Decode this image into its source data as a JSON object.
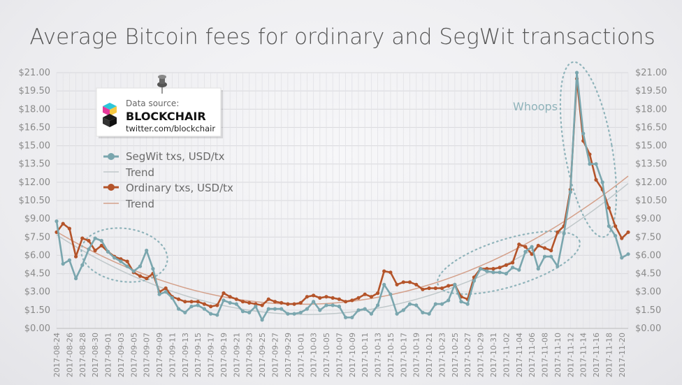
{
  "chart_data": {
    "type": "line",
    "title": "Average Bitcoin fees for ordinary and SegWit transactions",
    "ylim": [
      0,
      21
    ],
    "y_ticks": [
      "$0.00",
      "$1.50",
      "$3.00",
      "$4.50",
      "$6.00",
      "$7.50",
      "$9.00",
      "$10.50",
      "$12.00",
      "$13.50",
      "$15.00",
      "$16.50",
      "$18.00",
      "$19.50",
      "$21.00"
    ],
    "x_ticks": [
      "2017-08-24",
      "2017-08-26",
      "2017-08-28",
      "2017-08-30",
      "2017-09-01",
      "2017-09-03",
      "2017-09-05",
      "2017-09-07",
      "2017-09-09",
      "2017-09-11",
      "2017-09-13",
      "2017-09-15",
      "2017-09-17",
      "2017-09-19",
      "2017-09-21",
      "2017-09-23",
      "2017-09-25",
      "2017-09-27",
      "2017-09-29",
      "2017-10-01",
      "2017-10-03",
      "2017-10-05",
      "2017-10-07",
      "2017-10-09",
      "2017-10-11",
      "2017-10-13",
      "2017-10-15",
      "2017-10-17",
      "2017-10-19",
      "2017-10-21",
      "2017-10-23",
      "2017-10-25",
      "2017-10-27",
      "2017-10-29",
      "2017-10-31",
      "2017-11-02",
      "2017-11-04",
      "2017-11-06",
      "2017-11-08",
      "2017-11-10",
      "2017-11-12",
      "2017-11-14",
      "2017-11-16",
      "2017-11-18",
      "2017-11-20"
    ],
    "x_start": "2017-08-24",
    "x_end": "2017-11-20",
    "dual_y_axis": true,
    "grid": true,
    "legend_position": "upper-left",
    "series": [
      {
        "name": "SegWit txs, USD/tx",
        "color": "#7aa6ae",
        "marker": "circle",
        "values": [
          8.8,
          5.3,
          5.6,
          4.1,
          5.2,
          6.5,
          7.4,
          7.2,
          6.3,
          5.8,
          5.5,
          5.1,
          4.7,
          5.1,
          6.4,
          4.9,
          2.8,
          3.0,
          2.5,
          1.6,
          1.3,
          1.8,
          1.9,
          1.6,
          1.2,
          1.1,
          2.3,
          2.1,
          2.0,
          1.4,
          1.3,
          1.8,
          0.7,
          1.6,
          1.6,
          1.6,
          1.2,
          1.2,
          1.3,
          1.6,
          2.2,
          1.5,
          1.9,
          1.9,
          1.8,
          0.9,
          0.9,
          1.5,
          1.6,
          1.2,
          1.9,
          3.6,
          2.8,
          1.2,
          1.5,
          2.0,
          1.9,
          1.3,
          1.2,
          2.0,
          2.0,
          2.3,
          3.6,
          2.2,
          2.0,
          3.9,
          4.9,
          4.7,
          4.6,
          4.6,
          4.5,
          5.0,
          4.8,
          6.3,
          6.7,
          4.9,
          5.9,
          5.9,
          5.1,
          7.8,
          11.2,
          21.0,
          16.0,
          13.5,
          13.5,
          12.0,
          8.4,
          7.6,
          5.8,
          6.1
        ]
      },
      {
        "name": "Ordinary txs, USD/tx",
        "color": "#b4542a",
        "marker": "circle",
        "values": [
          7.9,
          8.6,
          8.2,
          5.9,
          7.4,
          7.2,
          6.4,
          6.8,
          6.3,
          5.9,
          5.7,
          5.5,
          4.6,
          4.3,
          4.1,
          4.5,
          3.0,
          3.3,
          2.6,
          2.4,
          2.2,
          2.2,
          2.2,
          2.0,
          1.8,
          1.9,
          2.9,
          2.6,
          2.4,
          2.2,
          2.1,
          2.0,
          1.9,
          2.4,
          2.2,
          2.1,
          2.0,
          2.0,
          2.1,
          2.6,
          2.7,
          2.5,
          2.6,
          2.5,
          2.4,
          2.2,
          2.3,
          2.5,
          2.8,
          2.6,
          2.9,
          4.7,
          4.6,
          3.6,
          3.8,
          3.8,
          3.6,
          3.2,
          3.3,
          3.3,
          3.3,
          3.5,
          3.6,
          2.6,
          2.4,
          4.2,
          4.9,
          4.9,
          4.9,
          5.0,
          5.2,
          5.4,
          6.9,
          6.7,
          6.1,
          6.8,
          6.6,
          6.4,
          7.9,
          8.4,
          11.4,
          20.5,
          15.4,
          14.3,
          12.2,
          11.4,
          9.9,
          8.4,
          7.4,
          7.9
        ]
      }
    ],
    "trend_lines": [
      {
        "name": "Trend",
        "color": "#c0c8ca",
        "series": "SegWit txs, USD/tx"
      },
      {
        "name": "Trend",
        "color": "#d4a08a",
        "series": "Ordinary txs, USD/tx"
      }
    ],
    "annotations": [
      {
        "text": "Whoops"
      }
    ]
  },
  "legend": {
    "segwit_label": "SegWit txs, USD/tx",
    "segwit_trend_label": "Trend",
    "ordinary_label": "Ordinary txs, USD/tx",
    "ordinary_trend_label": "Trend"
  },
  "source_card": {
    "caption": "Data source:",
    "brand": "BLOCKCHAIR",
    "handle": "twitter.com/blockchair",
    "icon": "blockchair-logo-icon",
    "pin_icon": "pushpin-icon"
  },
  "colors": {
    "segwit": "#7aa6ae",
    "ordinary": "#b4542a",
    "segwit_trend": "#c0c8ca",
    "ordinary_trend": "#d4a08a",
    "grid": "#d8d8dc",
    "axis_text": "#8a8a8a",
    "title": "#555555"
  }
}
